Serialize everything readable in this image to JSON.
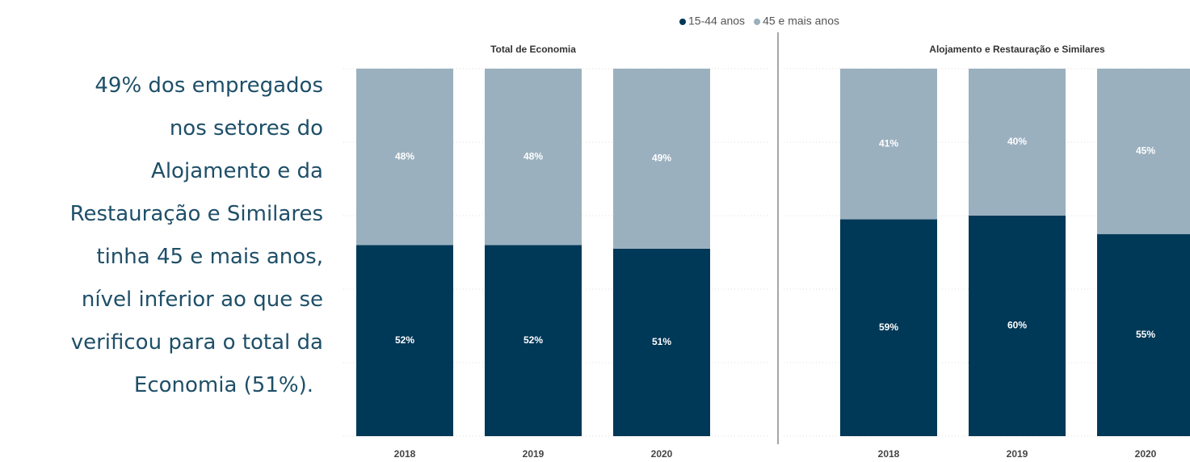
{
  "text": {
    "lines": [
      "49% dos empregados",
      "nos setores do",
      "Alojamento e da",
      "Restauração e Similares",
      "tinha 45 e mais anos,",
      "nível inferior ao que se",
      "verificou para o total da",
      "Economia (51%)."
    ]
  },
  "chart_data": [
    {
      "type": "bar",
      "stacked": true,
      "title": "Total de Economia",
      "categories": [
        "2018",
        "2019",
        "2020"
      ],
      "series": [
        {
          "name": "15-44 anos",
          "color": "#003857",
          "values": [
            52,
            52,
            51
          ],
          "value_labels": [
            "52%",
            "52%",
            "51%"
          ]
        },
        {
          "name": "45 e mais anos",
          "color": "#9bb0bf",
          "values": [
            48,
            48,
            49
          ],
          "value_labels": [
            "48%",
            "48%",
            "49%"
          ]
        }
      ],
      "ylim": [
        0,
        100
      ],
      "yticks": [
        0,
        20,
        40,
        60,
        80,
        100
      ],
      "grid": true,
      "legend": "top"
    },
    {
      "type": "bar",
      "stacked": true,
      "title": "Alojamento e Restauração e Similares",
      "categories": [
        "2018",
        "2019",
        "2020"
      ],
      "series": [
        {
          "name": "15-44 anos",
          "color": "#003857",
          "values": [
            59,
            60,
            55
          ],
          "value_labels": [
            "59%",
            "60%",
            "55%"
          ]
        },
        {
          "name": "45 e mais anos",
          "color": "#9bb0bf",
          "values": [
            41,
            40,
            45
          ],
          "value_labels": [
            "41%",
            "40%",
            "45%"
          ]
        }
      ],
      "ylim": [
        0,
        100
      ],
      "yticks": [
        0,
        20,
        40,
        60,
        80,
        100
      ],
      "grid": true,
      "legend": "top"
    }
  ]
}
